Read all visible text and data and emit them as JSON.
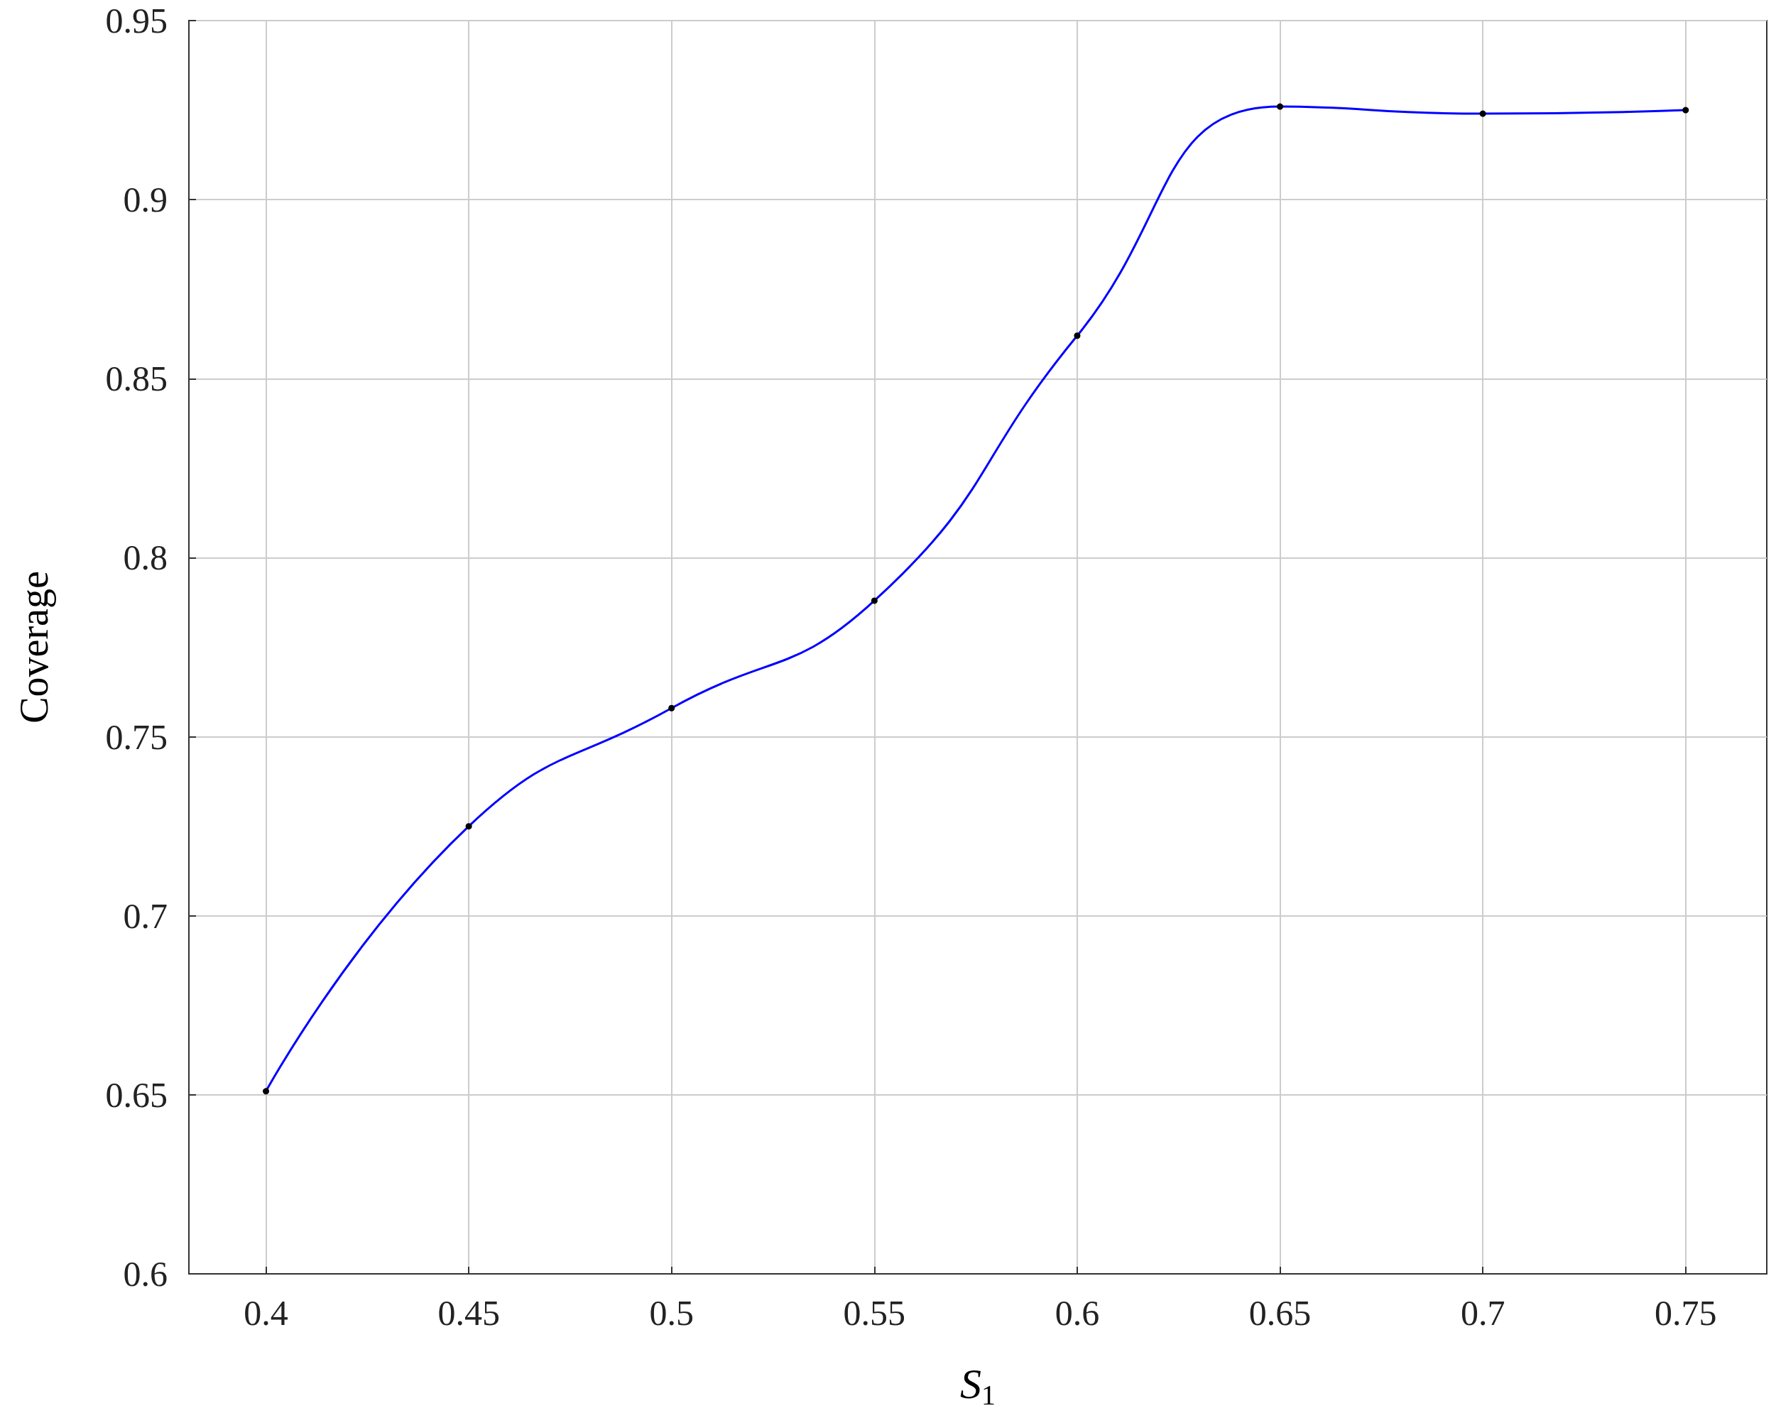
{
  "chart_data": {
    "type": "line",
    "xlabel": "S$_{1}$",
    "ylabel": "Coverage",
    "x": [
      0.4,
      0.45,
      0.5,
      0.55,
      0.6,
      0.65,
      0.7,
      0.75
    ],
    "series": [
      {
        "color": "#0000ff",
        "values": [
          0.651,
          0.725,
          0.758,
          0.788,
          0.862,
          0.926,
          0.924,
          0.925
        ]
      }
    ],
    "xlim": [
      0.381,
      0.77
    ],
    "ylim": [
      0.6,
      0.95
    ],
    "xticks": [
      0.4,
      0.45,
      0.5,
      0.55,
      0.6,
      0.65,
      0.7,
      0.75
    ],
    "yticks": [
      0.6,
      0.65,
      0.7,
      0.75,
      0.8,
      0.85,
      0.9,
      0.95
    ],
    "grid": true,
    "marker": "circle",
    "line_style": "solid"
  }
}
